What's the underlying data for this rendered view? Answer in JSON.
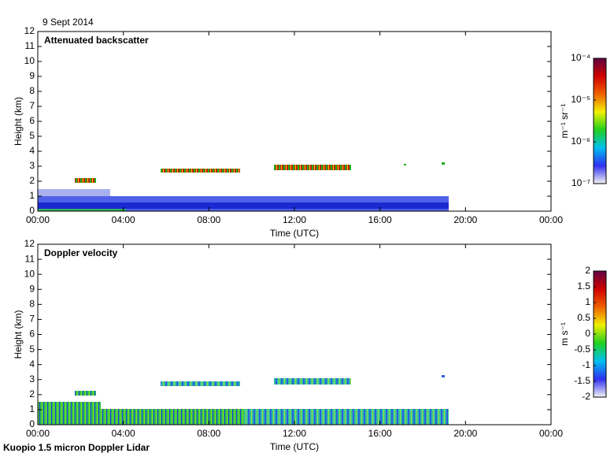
{
  "date": "9 Sept 2014",
  "footer": "Kuopio 1.5 micron Doppler Lidar",
  "chart_data": [
    {
      "type": "heatmap",
      "title": "Attenuated backscatter",
      "xlabel": "Time (UTC)",
      "ylabel": "Height (km)",
      "xlim": [
        0,
        24
      ],
      "xticks": [
        {
          "value": 0,
          "label": "00:00"
        },
        {
          "value": 4,
          "label": "04:00"
        },
        {
          "value": 8,
          "label": "08:00"
        },
        {
          "value": 12,
          "label": "12:00"
        },
        {
          "value": 16,
          "label": "16:00"
        },
        {
          "value": 20,
          "label": "20:00"
        },
        {
          "value": 24,
          "label": "00:00"
        }
      ],
      "ylim": [
        0,
        12
      ],
      "yticks": [
        0,
        1,
        2,
        3,
        4,
        5,
        6,
        7,
        8,
        9,
        10,
        11,
        12
      ],
      "colorbar": {
        "label": "m⁻¹ sr⁻¹",
        "log": true,
        "lim": [
          1e-07,
          0.0001
        ],
        "ticks": [
          {
            "value": 1e-07,
            "label": "10⁻⁷"
          },
          {
            "value": 1e-06,
            "label": "10⁻⁶"
          },
          {
            "value": 1e-05,
            "label": "10⁻⁵"
          },
          {
            "value": 0.0001,
            "label": "10⁻⁴"
          }
        ],
        "colormap": [
          "#f4f4f4",
          "#3030f0",
          "#00c0f0",
          "#20d020",
          "#f0f000",
          "#f06000",
          "#d00000",
          "#600040"
        ]
      }
    },
    {
      "type": "heatmap",
      "title": "Doppler velocity",
      "xlabel": "Time (UTC)",
      "ylabel": "Height (km)",
      "xlim": [
        0,
        24
      ],
      "xticks": [
        {
          "value": 0,
          "label": "00:00"
        },
        {
          "value": 4,
          "label": "04:00"
        },
        {
          "value": 8,
          "label": "08:00"
        },
        {
          "value": 12,
          "label": "12:00"
        },
        {
          "value": 16,
          "label": "16:00"
        },
        {
          "value": 20,
          "label": "20:00"
        },
        {
          "value": 24,
          "label": "00:00"
        }
      ],
      "ylim": [
        0,
        12
      ],
      "yticks": [
        0,
        1,
        2,
        3,
        4,
        5,
        6,
        7,
        8,
        9,
        10,
        11,
        12
      ],
      "colorbar": {
        "label": "m s⁻¹",
        "log": false,
        "lim": [
          -2,
          2
        ],
        "ticks": [
          -2,
          -1.5,
          -1,
          -0.5,
          0,
          0.5,
          1,
          1.5,
          2
        ],
        "colormap": [
          "#f4f4f4",
          "#3030f0",
          "#00c0f0",
          "#20d020",
          "#f0f000",
          "#f06000",
          "#d00000",
          "#600040"
        ]
      }
    }
  ]
}
